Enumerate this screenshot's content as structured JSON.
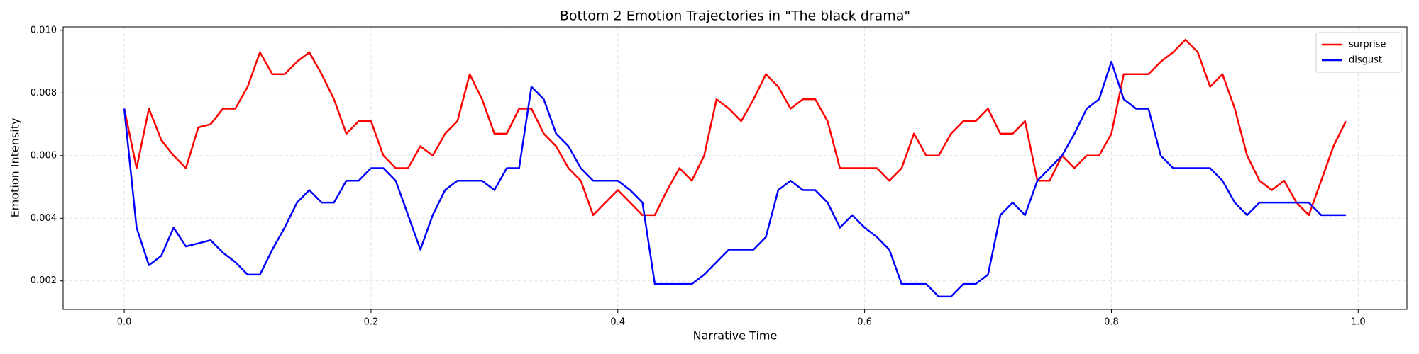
{
  "chart_data": {
    "type": "line",
    "title": "Bottom 2 Emotion Trajectories in \"The black drama\"",
    "xlabel": "Narrative Time",
    "ylabel": "Emotion Intensity",
    "x": [
      0,
      0.01,
      0.02,
      0.03,
      0.04,
      0.05,
      0.06,
      0.07,
      0.08,
      0.09,
      0.1,
      0.11,
      0.12,
      0.13,
      0.14,
      0.15,
      0.16,
      0.17,
      0.18,
      0.19,
      0.2,
      0.21,
      0.22,
      0.23,
      0.24,
      0.25,
      0.26,
      0.27,
      0.28,
      0.29,
      0.3,
      0.31,
      0.32,
      0.33,
      0.34,
      0.35,
      0.36,
      0.37,
      0.38,
      0.39,
      0.4,
      0.41,
      0.42,
      0.43,
      0.44,
      0.45,
      0.46,
      0.47,
      0.48,
      0.49,
      0.5,
      0.51,
      0.52,
      0.53,
      0.54,
      0.55,
      0.56,
      0.57,
      0.58,
      0.59,
      0.6,
      0.61,
      0.62,
      0.63,
      0.64,
      0.65,
      0.66,
      0.67,
      0.68,
      0.69,
      0.7,
      0.71,
      0.72,
      0.73,
      0.74,
      0.75,
      0.76,
      0.77,
      0.78,
      0.79,
      0.8,
      0.81,
      0.82,
      0.83,
      0.84,
      0.85,
      0.86,
      0.87,
      0.88,
      0.89,
      0.9,
      0.91,
      0.92,
      0.93,
      0.94,
      0.95,
      0.96,
      0.97,
      0.98,
      0.99
    ],
    "series": [
      {
        "name": "surprise",
        "color": "#ff0000",
        "values": [
          0.0075,
          0.0056,
          0.0075,
          0.0065,
          0.006,
          0.0056,
          0.0069,
          0.007,
          0.0075,
          0.0075,
          0.0082,
          0.0093,
          0.0086,
          0.0086,
          0.009,
          0.0093,
          0.0086,
          0.0078,
          0.0067,
          0.0071,
          0.0071,
          0.006,
          0.0056,
          0.0056,
          0.0063,
          0.006,
          0.0067,
          0.0071,
          0.0086,
          0.0078,
          0.0067,
          0.0067,
          0.0075,
          0.0075,
          0.0067,
          0.0063,
          0.0056,
          0.0052,
          0.0041,
          0.0045,
          0.0049,
          0.0045,
          0.0041,
          0.0041,
          0.0049,
          0.0056,
          0.0052,
          0.006,
          0.0078,
          0.0075,
          0.0071,
          0.0078,
          0.0086,
          0.0082,
          0.0075,
          0.0078,
          0.0078,
          0.0071,
          0.0056,
          0.0056,
          0.0056,
          0.0056,
          0.0052,
          0.0056,
          0.0067,
          0.006,
          0.006,
          0.0067,
          0.0071,
          0.0071,
          0.0075,
          0.0067,
          0.0067,
          0.0071,
          0.0052,
          0.0052,
          0.006,
          0.0056,
          0.006,
          0.006,
          0.0067,
          0.0086,
          0.0086,
          0.0086,
          0.009,
          0.0093,
          0.0097,
          0.0093,
          0.0082,
          0.0086,
          0.0075,
          0.006,
          0.0052,
          0.0049,
          0.0052,
          0.0045,
          0.0041,
          0.0052,
          0.0063,
          0.0071
        ]
      },
      {
        "name": "disgust",
        "color": "#0000ff",
        "values": [
          0.0075,
          0.0037,
          0.0025,
          0.0028,
          0.0037,
          0.0031,
          0.0032,
          0.0033,
          0.0029,
          0.0026,
          0.0022,
          0.0022,
          0.003,
          0.0037,
          0.0045,
          0.0049,
          0.0045,
          0.0045,
          0.0052,
          0.0052,
          0.0056,
          0.0056,
          0.0052,
          0.0041,
          0.003,
          0.0041,
          0.0049,
          0.0052,
          0.0052,
          0.0052,
          0.0049,
          0.0056,
          0.0056,
          0.0082,
          0.0078,
          0.0067,
          0.0063,
          0.0056,
          0.0052,
          0.0052,
          0.0052,
          0.0049,
          0.0045,
          0.0019,
          0.0019,
          0.0019,
          0.0019,
          0.0022,
          0.0026,
          0.003,
          0.003,
          0.003,
          0.0034,
          0.0049,
          0.0052,
          0.0049,
          0.0049,
          0.0045,
          0.0037,
          0.0041,
          0.0037,
          0.0034,
          0.003,
          0.0019,
          0.0019,
          0.0019,
          0.0015,
          0.0015,
          0.0019,
          0.0019,
          0.0022,
          0.0041,
          0.0045,
          0.0041,
          0.0052,
          0.0056,
          0.006,
          0.0067,
          0.0075,
          0.0078,
          0.009,
          0.0078,
          0.0075,
          0.0075,
          0.006,
          0.0056,
          0.0056,
          0.0056,
          0.0056,
          0.0052,
          0.0045,
          0.0041,
          0.0045,
          0.0045,
          0.0045,
          0.0045,
          0.0045,
          0.0041,
          0.0041,
          0.0041
        ]
      }
    ],
    "xlim": [
      -0.0495,
      1.0395
    ],
    "xticks": [
      {
        "value": 0,
        "label": "0.0"
      },
      0.2,
      0.4,
      0.6,
      0.8,
      {
        "value": 1,
        "label": "1.0"
      }
    ],
    "ylim": [
      0.00109,
      0.01011
    ],
    "yticks": [
      0.002,
      0.004,
      0.006,
      0.008,
      {
        "value": 0.01,
        "label": "0.010"
      }
    ],
    "grid": true,
    "legend": "upper right"
  }
}
